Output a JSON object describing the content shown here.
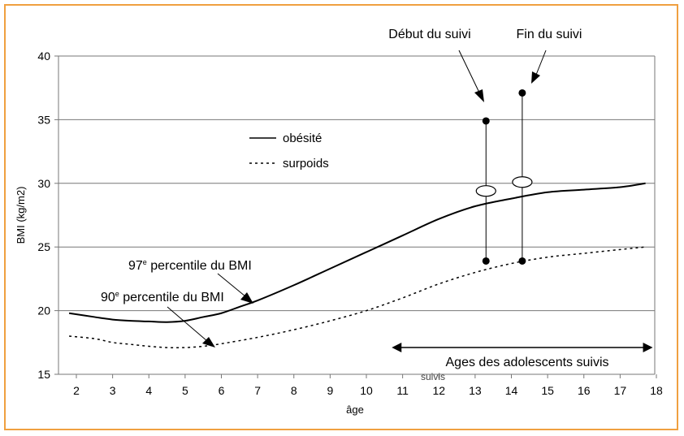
{
  "chart_data": {
    "type": "line",
    "xlabel": "âge",
    "ylabel": "BMI (kg/m2)",
    "xlim": [
      1.7,
      18
    ],
    "ylim": [
      15,
      40
    ],
    "x_ticks": [
      2,
      3,
      4,
      5,
      6,
      7,
      8,
      9,
      10,
      11,
      12,
      13,
      14,
      15,
      16,
      17,
      18
    ],
    "y_ticks": [
      15,
      20,
      25,
      30,
      35,
      40
    ],
    "grid": "horizontal",
    "legend": {
      "placement": "top-center",
      "entries": [
        {
          "label": "obésité",
          "style": "solid"
        },
        {
          "label": "surpoids",
          "style": "dashed"
        }
      ]
    },
    "series": [
      {
        "name": "obésité",
        "style": "solid",
        "x": [
          1.8,
          2.5,
          3,
          3.5,
          4,
          4.5,
          5,
          5.5,
          6,
          6.5,
          7,
          8,
          9,
          10,
          11,
          12,
          13,
          14,
          15,
          16,
          17,
          17.7
        ],
        "y": [
          19.8,
          19.5,
          19.3,
          19.2,
          19.15,
          19.1,
          19.2,
          19.5,
          19.8,
          20.3,
          20.8,
          22.0,
          23.3,
          24.6,
          25.9,
          27.2,
          28.2,
          28.8,
          29.3,
          29.5,
          29.7,
          30.0
        ]
      },
      {
        "name": "surpoids",
        "style": "dashed",
        "x": [
          1.8,
          2.5,
          3,
          3.5,
          4,
          4.5,
          5,
          5.5,
          6,
          7,
          8,
          9,
          10,
          11,
          12,
          13,
          14,
          15,
          16,
          17,
          17.7
        ],
        "y": [
          18.0,
          17.8,
          17.5,
          17.35,
          17.2,
          17.1,
          17.1,
          17.2,
          17.4,
          17.9,
          18.5,
          19.2,
          20.0,
          21.0,
          22.1,
          23.0,
          23.7,
          24.2,
          24.5,
          24.8,
          25.0
        ]
      }
    ],
    "followup_bars": [
      {
        "x": 13.3,
        "high": 34.9,
        "low": 23.9,
        "mid": 29.4
      },
      {
        "x": 14.3,
        "high": 37.1,
        "low": 23.9,
        "mid": 30.1
      }
    ],
    "range_arrow": {
      "from": 10.7,
      "to": 17.9,
      "label": "Ages des adolescents suivis",
      "trailing_text": "suivis"
    },
    "annotations": [
      {
        "id": "debut",
        "text": "Début du suivi"
      },
      {
        "id": "fin",
        "text": "Fin du suivi"
      },
      {
        "id": "p97",
        "text_main": "97",
        "sup": "e",
        "text_rest": " percentile du BMI"
      },
      {
        "id": "p90",
        "text_main": "90",
        "sup": "e",
        "text_rest": " percentile du BMI"
      }
    ]
  }
}
